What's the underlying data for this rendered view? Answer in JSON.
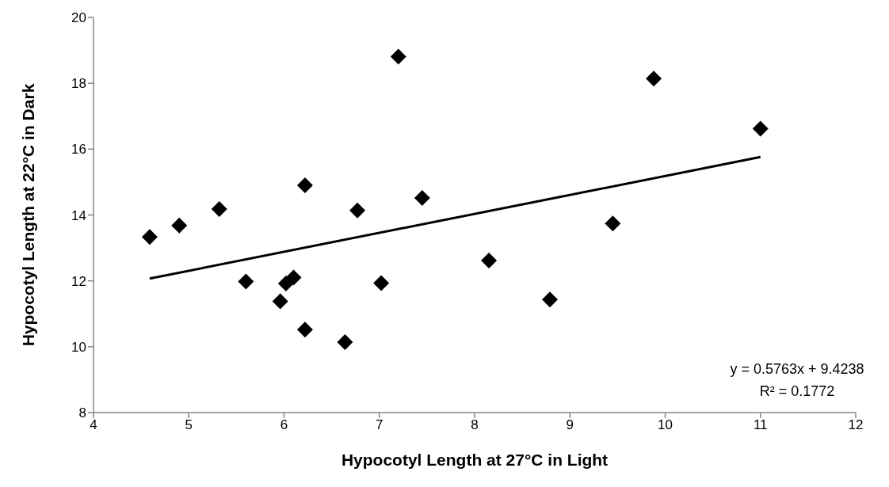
{
  "chart_data": {
    "type": "scatter",
    "xlabel": "Hypocotyl Length at 27°C in Light",
    "ylabel": "Hypocotyl Length at 22°C in Dark",
    "xlim": [
      4,
      12
    ],
    "xticks": [
      4,
      5,
      6,
      7,
      8,
      9,
      10,
      11,
      12
    ],
    "ylim": [
      8,
      20
    ],
    "yticks": [
      8,
      10,
      12,
      14,
      16,
      18,
      20
    ],
    "grid": false,
    "legend": false,
    "series": [
      {
        "color": "#000000",
        "marker": "diamond",
        "x": [
          4.59,
          4.9,
          5.32,
          5.6,
          5.96,
          6.02,
          6.1,
          6.22,
          6.22,
          6.64,
          6.77,
          7.02,
          7.2,
          7.45,
          8.15,
          8.79,
          9.45,
          9.88,
          11.0
        ],
        "values": [
          13.33,
          13.68,
          14.18,
          11.98,
          11.38,
          11.92,
          12.1,
          14.9,
          10.52,
          10.14,
          14.14,
          11.93,
          18.81,
          14.52,
          12.62,
          11.43,
          13.74,
          18.14,
          16.62
        ]
      },
      {
        "type": "line",
        "color": "#000000",
        "marker": "none",
        "line_style": "solid",
        "x": [
          4.59,
          11.0
        ],
        "values": [
          12.07,
          15.76
        ]
      }
    ],
    "annotations": [
      "y = 0.5763x + 9.4238",
      "R² = 0.1772"
    ]
  }
}
